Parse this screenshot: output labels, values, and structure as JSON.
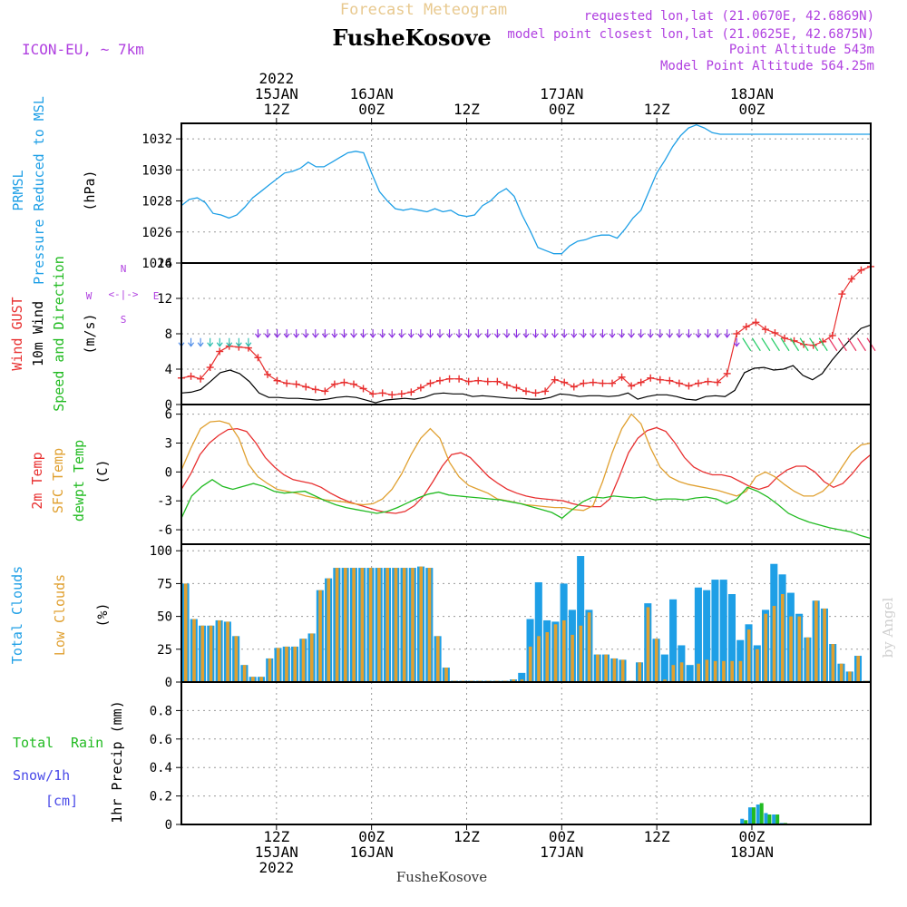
{
  "header": {
    "product": "Forecast Meteogram",
    "model": "ICON-EU, ~ 7km",
    "location": "FusheKosove",
    "requested": "requested lon,lat (21.0670E, 42.6869N)",
    "closest": "model point closest lon,lat (21.0625E, 42.6875N)",
    "altitude": "Point Altitude 543m",
    "model_altitude": "Model Point Altitude 564.25m",
    "footer_location": "FusheKosove",
    "credit": "by Angel",
    "colors": {
      "product": "#e8c98f",
      "info": "#b040e0",
      "location": "#000000"
    }
  },
  "time_axis": {
    "top_labels": [
      {
        "t": 12,
        "lines": [
          "2022",
          "15JAN",
          "12Z"
        ]
      },
      {
        "t": 24,
        "lines": [
          "16JAN",
          "00Z"
        ]
      },
      {
        "t": 36,
        "lines": [
          "12Z"
        ]
      },
      {
        "t": 48,
        "lines": [
          "17JAN",
          "00Z"
        ]
      },
      {
        "t": 60,
        "lines": [
          "12Z"
        ]
      },
      {
        "t": 72,
        "lines": [
          "18JAN",
          "00Z"
        ]
      }
    ],
    "bottom_labels": [
      {
        "t": 12,
        "lines": [
          "12Z",
          "15JAN",
          "2022"
        ]
      },
      {
        "t": 24,
        "lines": [
          "00Z",
          "16JAN"
        ]
      },
      {
        "t": 36,
        "lines": [
          "12Z"
        ]
      },
      {
        "t": 48,
        "lines": [
          "00Z",
          "17JAN"
        ]
      },
      {
        "t": 60,
        "lines": [
          "12Z"
        ]
      },
      {
        "t": 72,
        "lines": [
          "00Z",
          "18JAN"
        ]
      }
    ]
  },
  "panel_labels": {
    "pressure": [
      {
        "text": "PRMSL",
        "color": "#1e9fe6"
      },
      {
        "text": "Pressure Reduced to MSL",
        "color": "#1e9fe6"
      }
    ],
    "pressure_unit": "(hPa)",
    "wind": [
      {
        "text": "Wind GUST",
        "color": "#e83030"
      },
      {
        "text": "10m Wind",
        "color": "#000000"
      },
      {
        "text": "Speed and Direction",
        "color": "#22bb22"
      }
    ],
    "wind_unit": "(m/s)",
    "compass": {
      "n": "N",
      "s": "S",
      "w": "W",
      "e": "E"
    },
    "temp": [
      {
        "text": "2m Temp",
        "color": "#e83030"
      },
      {
        "text": "SFC Temp",
        "color": "#e0a030"
      },
      {
        "text": "dewpt Temp",
        "color": "#22bb22"
      }
    ],
    "temp_unit": "(C)",
    "clouds": [
      {
        "text": "Total Clouds",
        "color": "#1e9fe6"
      },
      {
        "text": "Low Clouds",
        "color": "#e0a030"
      }
    ],
    "clouds_unit": "(%)",
    "precip_total": "Total",
    "precip_rain": "Rain",
    "precip_snow": "Snow/1h",
    "precip_cm": "[cm]",
    "precip_axis": "1hr Precip (mm)"
  },
  "chart_data": [
    {
      "type": "line",
      "name": "pressure",
      "x_unit": "hours since 15JAN 00Z",
      "ylim": [
        1024,
        1033
      ],
      "yticks": [
        1024,
        1026,
        1028,
        1030,
        1032
      ],
      "series": [
        {
          "name": "PRMSL",
          "color": "#1e9fe6",
          "x": [
            0,
            1,
            2,
            3,
            4,
            5,
            6,
            7,
            8,
            9,
            10,
            11,
            12,
            13,
            14,
            15,
            16,
            17,
            18,
            19,
            20,
            21,
            22,
            23,
            24,
            25,
            26,
            27,
            28,
            29,
            30,
            31,
            32,
            33,
            34,
            35,
            36,
            37,
            38,
            39,
            40,
            41,
            42,
            43,
            44,
            45,
            46,
            47,
            48,
            49,
            50,
            51,
            52,
            53,
            54,
            55,
            56,
            57,
            58,
            59,
            60,
            61,
            62,
            63,
            64,
            65,
            66,
            67,
            68,
            69,
            70,
            71,
            72,
            73,
            74,
            75,
            76,
            77,
            78,
            79,
            80,
            81,
            82,
            83,
            84,
            85,
            86,
            87
          ],
          "values": [
            1027.7,
            1028.1,
            1028.2,
            1027.9,
            1027.2,
            1027.1,
            1026.9,
            1027.1,
            1027.6,
            1028.2,
            1028.6,
            1029.0,
            1029.4,
            1029.8,
            1029.9,
            1030.1,
            1030.5,
            1030.2,
            1030.2,
            1030.5,
            1030.8,
            1031.1,
            1031.2,
            1031.1,
            1029.8,
            1028.6,
            1028.0,
            1027.5,
            1027.4,
            1027.5,
            1027.4,
            1027.3,
            1027.5,
            1027.3,
            1027.4,
            1027.1,
            1027.0,
            1027.1,
            1027.7,
            1028.0,
            1028.5,
            1028.8,
            1028.3,
            1027.1,
            1026.1,
            1025.0,
            1024.8,
            1024.6,
            1024.6,
            1025.1,
            1025.4,
            1025.5,
            1025.7,
            1025.8,
            1025.8,
            1025.6,
            1026.2,
            1026.9,
            1027.4,
            1028.6,
            1029.8,
            1030.6,
            1031.5,
            1032.2,
            1032.7,
            1032.9,
            1032.7,
            1032.4,
            1032.3,
            1032.3,
            1032.3,
            1032.3,
            1032.3,
            1032.3,
            1032.3,
            1032.3,
            1032.3,
            1032.3,
            1032.3,
            1032.3,
            1032.3,
            1032.3,
            1032.3,
            1032.3,
            1032.3,
            1032.3,
            1032.3,
            1032.3
          ]
        }
      ]
    },
    {
      "type": "line",
      "name": "wind",
      "x_unit": "hours since 15JAN 00Z",
      "ylim": [
        0,
        16
      ],
      "yticks": [
        0,
        4,
        8,
        12,
        16
      ],
      "series": [
        {
          "name": "Wind GUST",
          "color": "#e83030",
          "marker": "+",
          "values": [
            3.0,
            3.2,
            2.9,
            4.2,
            6.0,
            6.6,
            6.5,
            6.4,
            5.3,
            3.4,
            2.7,
            2.4,
            2.3,
            2.0,
            1.7,
            1.5,
            2.3,
            2.5,
            2.3,
            1.8,
            1.2,
            1.3,
            1.1,
            1.2,
            1.4,
            1.9,
            2.4,
            2.7,
            2.9,
            2.9,
            2.6,
            2.7,
            2.6,
            2.6,
            2.2,
            1.9,
            1.5,
            1.3,
            1.5,
            2.8,
            2.5,
            2.0,
            2.4,
            2.5,
            2.4,
            2.4,
            3.1,
            2.1,
            2.5,
            3.0,
            2.8,
            2.7,
            2.4,
            2.1,
            2.4,
            2.6,
            2.5,
            3.5,
            8.0,
            8.8,
            9.3,
            8.5,
            8.1,
            7.5,
            7.2,
            6.8,
            6.7,
            7.1,
            7.8,
            12.5,
            14.2,
            15.2,
            15.6
          ]
        },
        {
          "name": "10m Wind",
          "color": "#000000",
          "values": [
            1.3,
            1.4,
            1.7,
            2.6,
            3.6,
            3.9,
            3.5,
            2.6,
            1.3,
            0.8,
            0.8,
            0.7,
            0.7,
            0.6,
            0.5,
            0.6,
            0.8,
            0.9,
            0.8,
            0.5,
            0.2,
            0.5,
            0.6,
            0.7,
            0.6,
            0.8,
            1.2,
            1.3,
            1.2,
            1.2,
            0.9,
            1.0,
            0.9,
            0.8,
            0.7,
            0.7,
            0.6,
            0.6,
            0.8,
            1.2,
            1.1,
            0.9,
            1.0,
            1.0,
            0.9,
            1.0,
            1.3,
            0.6,
            0.9,
            1.1,
            1.1,
            0.9,
            0.6,
            0.5,
            0.9,
            1.0,
            0.9,
            1.6,
            3.6,
            4.1,
            4.2,
            3.9,
            4.0,
            4.4,
            3.3,
            2.8,
            3.5,
            5.0,
            6.3,
            7.5,
            8.6,
            9.0
          ]
        },
        {
          "name": "Speed and Direction",
          "color": "#22bb22",
          "type": "wind_barbs",
          "values": [
            7,
            7,
            7,
            7,
            7,
            7,
            7,
            7,
            8,
            8,
            8,
            8,
            8,
            8,
            8,
            8,
            8,
            8,
            8,
            8,
            8,
            8,
            8,
            8,
            8,
            8,
            8,
            8,
            8,
            8,
            8,
            8,
            8,
            8,
            8,
            8,
            8,
            8,
            8,
            8,
            8,
            8,
            8,
            8,
            8,
            8,
            8,
            8,
            8,
            8,
            8,
            8,
            8,
            8,
            8,
            8,
            8,
            8,
            7,
            7,
            7,
            7,
            7,
            7,
            7,
            7,
            7,
            7,
            7,
            7,
            7,
            7,
            7
          ]
        }
      ]
    },
    {
      "type": "line",
      "name": "temperature",
      "x_unit": "hours since 15JAN 00Z",
      "ylim": [
        -7.5,
        7
      ],
      "yticks": [
        -6,
        -3,
        0,
        3,
        6
      ],
      "series": [
        {
          "name": "2m Temp",
          "color": "#e83030",
          "values": [
            -1.8,
            -0.2,
            1.8,
            3.0,
            3.8,
            4.4,
            4.5,
            4.2,
            3.0,
            1.5,
            0.5,
            -0.3,
            -0.8,
            -1.0,
            -1.2,
            -1.6,
            -2.2,
            -2.7,
            -3.1,
            -3.4,
            -3.7,
            -4.0,
            -4.2,
            -4.3,
            -4.1,
            -3.5,
            -2.5,
            -1.0,
            0.6,
            1.8,
            2.0,
            1.5,
            0.5,
            -0.5,
            -1.2,
            -1.8,
            -2.2,
            -2.5,
            -2.7,
            -2.8,
            -2.9,
            -3.0,
            -3.3,
            -3.5,
            -3.6,
            -3.6,
            -2.8,
            -0.5,
            2.0,
            3.5,
            4.3,
            4.6,
            4.2,
            3.0,
            1.5,
            0.5,
            0.0,
            -0.3,
            -0.3,
            -0.5,
            -1.0,
            -1.5,
            -1.8,
            -1.5,
            -0.5,
            0.2,
            0.6,
            0.6,
            0.0,
            -1.0,
            -1.6,
            -1.2,
            -0.2,
            1.0,
            1.8
          ]
        },
        {
          "name": "SFC Temp",
          "color": "#e0a030",
          "values": [
            0.2,
            2.5,
            4.5,
            5.2,
            5.3,
            5.0,
            3.5,
            0.8,
            -0.5,
            -1.2,
            -1.8,
            -2.0,
            -2.2,
            -2.5,
            -2.7,
            -2.9,
            -3.0,
            -3.1,
            -3.3,
            -3.4,
            -3.3,
            -2.8,
            -1.8,
            -0.2,
            1.8,
            3.5,
            4.5,
            3.5,
            1.0,
            -0.5,
            -1.4,
            -1.8,
            -2.2,
            -2.8,
            -3.0,
            -3.2,
            -3.4,
            -3.5,
            -3.6,
            -3.7,
            -3.7,
            -3.9,
            -4.0,
            -3.5,
            -1.0,
            2.0,
            4.5,
            6.0,
            5.0,
            2.5,
            0.5,
            -0.5,
            -1.0,
            -1.3,
            -1.5,
            -1.7,
            -1.9,
            -2.2,
            -2.5,
            -2.0,
            -0.5,
            0.0,
            -0.5,
            -1.3,
            -2.0,
            -2.5,
            -2.5,
            -2.0,
            -1.0,
            0.5,
            2.0,
            2.8,
            3.0
          ]
        },
        {
          "name": "dewpt Temp",
          "color": "#22bb22",
          "values": [
            -4.8,
            -2.5,
            -1.5,
            -0.8,
            -1.5,
            -1.8,
            -1.5,
            -1.2,
            -1.5,
            -2.0,
            -2.2,
            -2.1,
            -2.0,
            -2.5,
            -3.0,
            -3.4,
            -3.7,
            -3.9,
            -4.1,
            -4.3,
            -4.1,
            -3.7,
            -3.2,
            -2.7,
            -2.3,
            -2.1,
            -2.4,
            -2.5,
            -2.6,
            -2.7,
            -2.8,
            -2.9,
            -3.1,
            -3.3,
            -3.6,
            -3.9,
            -4.2,
            -4.8,
            -3.9,
            -3.1,
            -2.6,
            -2.7,
            -2.5,
            -2.6,
            -2.7,
            -2.6,
            -2.9,
            -2.8,
            -2.8,
            -2.9,
            -2.7,
            -2.6,
            -2.8,
            -3.3,
            -2.8,
            -1.6,
            -2.0,
            -2.6,
            -3.4,
            -4.3,
            -4.8,
            -5.2,
            -5.5,
            -5.8,
            -6.0,
            -6.2,
            -6.6,
            -6.9
          ]
        }
      ]
    },
    {
      "type": "bar",
      "name": "clouds",
      "x_unit": "hours since 15JAN 00Z",
      "ylim": [
        0,
        105
      ],
      "yticks": [
        0,
        25,
        50,
        75,
        100
      ],
      "series": [
        {
          "name": "Total Clouds",
          "color": "#1e9fe6",
          "values": [
            75,
            48,
            43,
            43,
            47,
            46,
            35,
            13,
            4,
            4,
            18,
            26,
            27,
            27,
            33,
            37,
            70,
            79,
            87,
            87,
            87,
            87,
            87,
            87,
            87,
            87,
            87,
            87,
            88,
            87,
            35,
            11,
            1,
            1,
            1,
            1,
            1,
            1,
            1,
            2,
            7,
            48,
            76,
            47,
            46,
            75,
            55,
            96,
            55,
            21,
            21,
            18,
            17,
            1,
            15,
            60,
            33,
            21,
            63,
            28,
            13,
            72,
            70,
            78,
            78,
            67,
            32,
            44,
            28,
            55,
            90,
            82,
            68,
            52,
            34,
            62,
            56,
            29,
            14,
            8,
            20,
            1
          ]
        },
        {
          "name": "Low Clouds",
          "color": "#e0a030",
          "values": [
            75,
            48,
            43,
            43,
            47,
            46,
            35,
            13,
            4,
            4,
            18,
            26,
            27,
            27,
            33,
            37,
            70,
            79,
            87,
            87,
            87,
            87,
            87,
            87,
            87,
            87,
            87,
            87,
            88,
            87,
            35,
            11,
            1,
            1,
            1,
            1,
            1,
            1,
            1,
            2,
            2,
            27,
            35,
            38,
            44,
            47,
            36,
            43,
            53,
            21,
            21,
            18,
            17,
            1,
            15,
            57,
            33,
            2,
            13,
            15,
            1,
            14,
            17,
            16,
            16,
            16,
            16,
            40,
            25,
            52,
            58,
            67,
            50,
            50,
            34,
            62,
            56,
            29,
            14,
            8,
            20,
            1
          ]
        }
      ]
    },
    {
      "type": "bar",
      "name": "precipitation",
      "x_unit": "hours since 15JAN 00Z",
      "ylim": [
        0,
        1.0
      ],
      "yticks": [
        0,
        0.2,
        0.4,
        0.6,
        0.8
      ],
      "series": [
        {
          "name": "Total",
          "color": "#1e9fe6",
          "x": [
            71,
            72,
            73,
            74,
            75,
            76,
            77
          ],
          "values": [
            0.04,
            0.12,
            0.14,
            0.08,
            0.07,
            0.01,
            0.0
          ]
        },
        {
          "name": "Rain",
          "color": "#22bb22",
          "x": [
            71,
            72,
            73,
            74,
            75,
            76,
            77
          ],
          "values": [
            0.03,
            0.12,
            0.15,
            0.07,
            0.07,
            0.01,
            0.0
          ]
        }
      ]
    }
  ]
}
